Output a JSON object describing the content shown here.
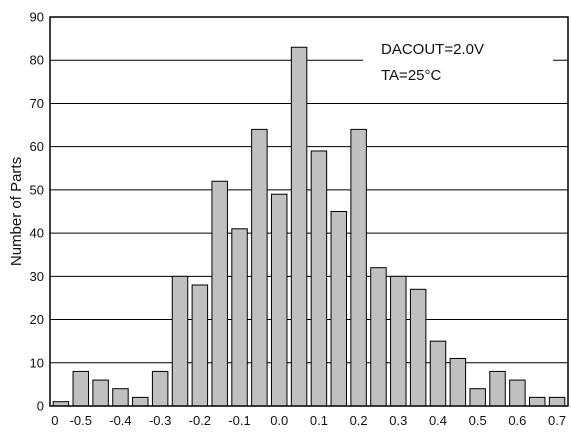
{
  "chart_data": {
    "type": "bar",
    "ylabel": "Number of Parts",
    "ylim": [
      0,
      90
    ],
    "yticks": [
      0,
      10,
      20,
      30,
      40,
      50,
      60,
      70,
      80,
      90
    ],
    "xticks": [
      "0",
      "-0.5",
      "-0.4",
      "-0.3",
      "-0.2",
      "-0.1",
      "0.0",
      "0.1",
      "0.2",
      "0.3",
      "0.4",
      "0.5",
      "0.6",
      "0.7"
    ],
    "grid": true,
    "bar_color": "#c0c0c0",
    "categories": [
      "-0.55",
      "-0.5",
      "-0.45",
      "-0.4",
      "-0.35",
      "-0.3",
      "-0.25",
      "-0.2",
      "-0.15",
      "-0.1",
      "-0.05",
      "0.0",
      "0.05",
      "0.1",
      "0.15",
      "0.2",
      "0.25",
      "0.3",
      "0.35",
      "0.4",
      "0.45",
      "0.5",
      "0.55",
      "0.6",
      "0.65",
      "0.7"
    ],
    "values": [
      1,
      8,
      6,
      4,
      2,
      8,
      30,
      28,
      52,
      41,
      64,
      49,
      83,
      59,
      45,
      64,
      32,
      30,
      27,
      15,
      11,
      4,
      8,
      6,
      2,
      2
    ],
    "annotations": [
      "DACOUT=2.0V",
      "TA=25°C"
    ]
  }
}
